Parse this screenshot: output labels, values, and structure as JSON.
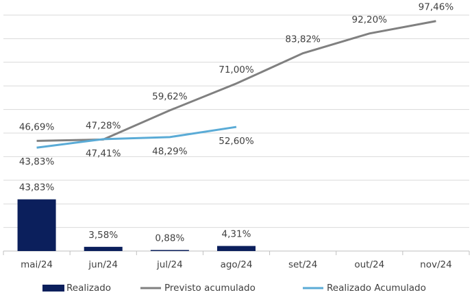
{
  "chart_data": {
    "type": "bar",
    "categories": [
      "mai/24",
      "jun/24",
      "jul/24",
      "ago/24",
      "set/24",
      "out/24",
      "nov/24"
    ],
    "ylim": [
      0,
      200
    ],
    "yticks": [
      0,
      20,
      40,
      60,
      80,
      100,
      120,
      140,
      160,
      180,
      200
    ],
    "y2lim": [
      0,
      100
    ],
    "grid": true,
    "legend": "bottom",
    "series": [
      {
        "name": "Realizado",
        "type": "bar",
        "color": "#0b1f5c",
        "values": [
          43.83,
          3.58,
          0.88,
          4.31,
          null,
          null,
          null
        ],
        "value_labels": [
          "43,83%",
          "3,58%",
          "0,88%",
          "4,31%",
          null,
          null,
          null
        ]
      },
      {
        "name": "Previsto acumulado",
        "type": "line",
        "axis": "y2",
        "color": "#808080",
        "values": [
          46.69,
          47.28,
          59.62,
          71.0,
          83.82,
          92.2,
          97.46
        ],
        "value_labels": [
          "46,69%",
          "47,28%",
          "59,62%",
          "71,00%",
          "83,82%",
          "92,20%",
          "97,46%"
        ]
      },
      {
        "name": "Realizado Acumulado",
        "type": "line",
        "axis": "y2",
        "color": "#5aabd6",
        "values": [
          43.83,
          47.41,
          48.29,
          52.6,
          null,
          null,
          null
        ],
        "value_labels": [
          "43,83%",
          "47,41%",
          "48,29%",
          "52,60%",
          null,
          null,
          null
        ]
      }
    ]
  }
}
